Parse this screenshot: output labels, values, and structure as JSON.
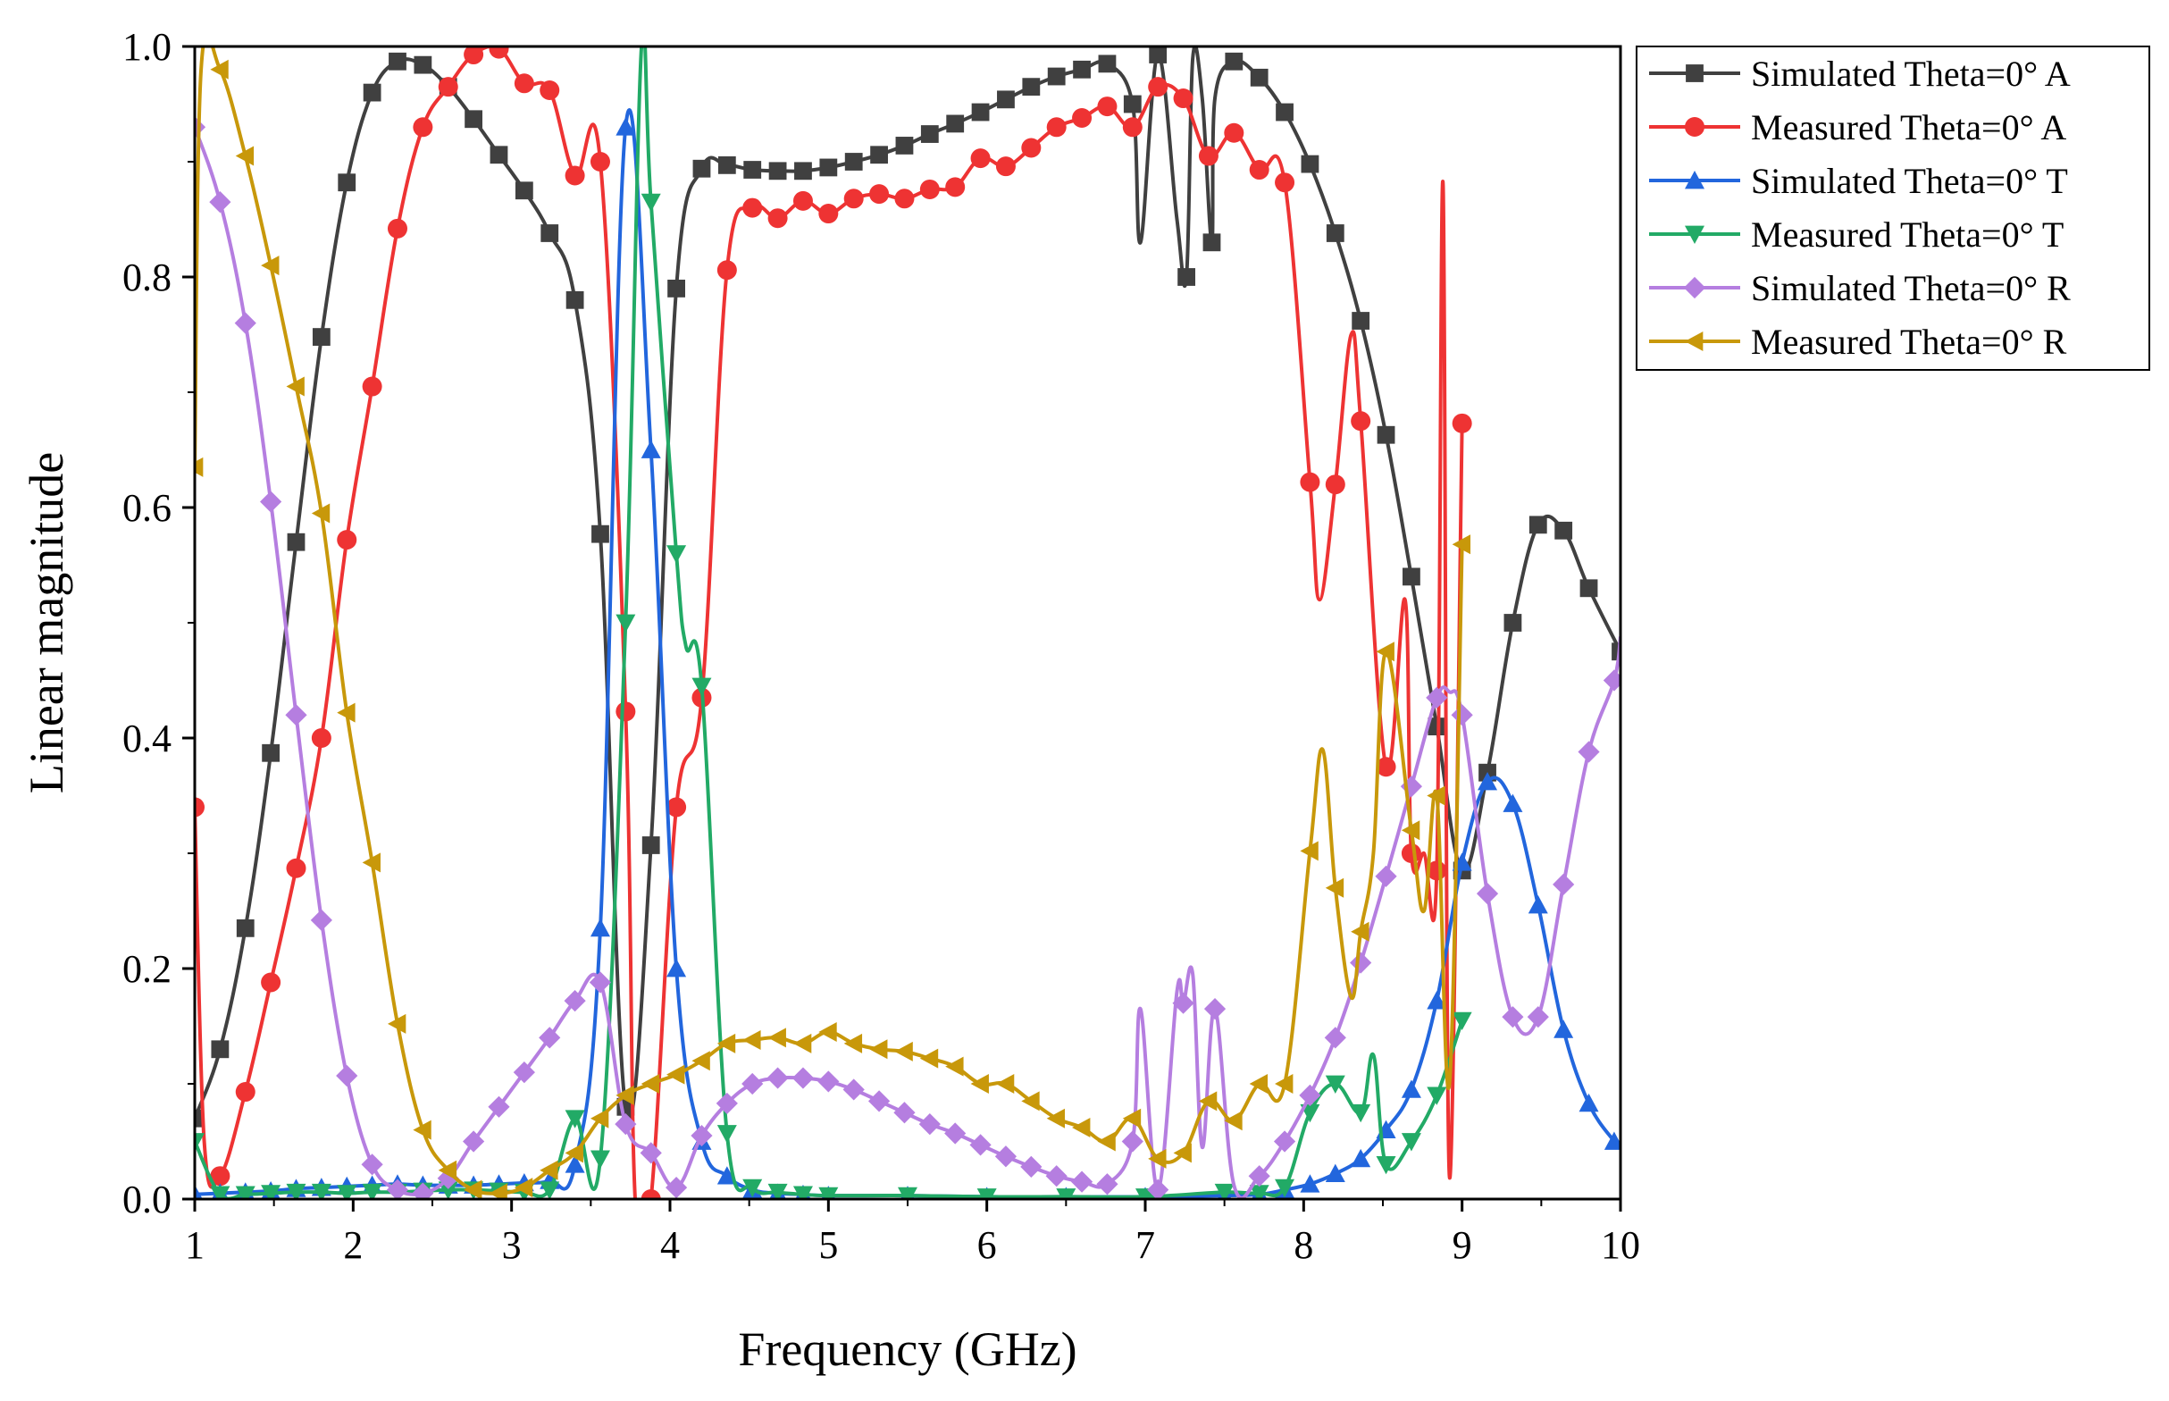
{
  "chart_data": {
    "type": "line",
    "title": "",
    "xlabel": "Frequency (GHz)",
    "ylabel": "Linear magnitude",
    "xlim": [
      1,
      10
    ],
    "ylim": [
      0,
      1.0
    ],
    "xticks": [
      1,
      2,
      3,
      4,
      5,
      6,
      7,
      8,
      9,
      10
    ],
    "xtick_labels": [
      "1",
      "2",
      "3",
      "4",
      "5",
      "6",
      "7",
      "8",
      "9",
      "10"
    ],
    "yticks": [
      0,
      0.2,
      0.4,
      0.6,
      0.8,
      1.0
    ],
    "ytick_labels": [
      "0.0",
      "0.2",
      "0.4",
      "0.6",
      "0.8",
      "1.0"
    ],
    "grid": false,
    "legend_position": "outside-top-right",
    "series": [
      {
        "name": "Simulated Theta=0° A",
        "color": "#404040",
        "marker": "square",
        "x": [
          1.0,
          1.16,
          1.32,
          1.48,
          1.64,
          1.8,
          1.96,
          2.12,
          2.28,
          2.44,
          2.6,
          2.76,
          2.92,
          3.08,
          3.24,
          3.4,
          3.56,
          3.72,
          3.88,
          4.04,
          4.2,
          4.36,
          4.52,
          4.68,
          4.84,
          5.0,
          5.16,
          5.32,
          5.48,
          5.64,
          5.8,
          5.96,
          6.12,
          6.28,
          6.44,
          6.6,
          6.76,
          6.92,
          6.97,
          7.08,
          7.2,
          7.26,
          7.3,
          7.36,
          7.42,
          7.44,
          7.56,
          7.72,
          7.88,
          8.04,
          8.2,
          8.36,
          8.52,
          8.68,
          8.84,
          9.0,
          9.16,
          9.32,
          9.48,
          9.64,
          9.8,
          10.0
        ],
        "y": [
          0.07,
          0.13,
          0.235,
          0.387,
          0.57,
          0.748,
          0.882,
          0.96,
          0.987,
          0.984,
          0.965,
          0.937,
          0.906,
          0.875,
          0.838,
          0.78,
          0.577,
          0.08,
          0.307,
          0.79,
          0.894,
          0.897,
          0.893,
          0.892,
          0.892,
          0.895,
          0.9,
          0.906,
          0.914,
          0.924,
          0.933,
          0.943,
          0.954,
          0.965,
          0.974,
          0.98,
          0.985,
          0.95,
          0.83,
          0.993,
          0.85,
          0.8,
          0.99,
          0.955,
          0.83,
          0.955,
          0.987,
          0.973,
          0.943,
          0.898,
          0.838,
          0.762,
          0.663,
          0.54,
          0.41,
          0.285,
          0.37,
          0.5,
          0.585,
          0.58,
          0.53,
          0.475
        ]
      },
      {
        "name": "Measured Theta=0° A",
        "color": "#EE3333",
        "marker": "circle",
        "x": [
          1.0,
          1.06,
          1.16,
          1.32,
          1.48,
          1.64,
          1.8,
          1.96,
          2.12,
          2.28,
          2.44,
          2.6,
          2.76,
          2.92,
          3.08,
          3.24,
          3.4,
          3.56,
          3.72,
          3.78,
          3.88,
          4.04,
          4.2,
          4.36,
          4.52,
          4.68,
          4.84,
          5.0,
          5.16,
          5.32,
          5.48,
          5.64,
          5.8,
          5.96,
          6.12,
          6.28,
          6.44,
          6.6,
          6.76,
          6.92,
          7.08,
          7.24,
          7.4,
          7.56,
          7.72,
          7.88,
          8.04,
          8.1,
          8.2,
          8.3,
          8.36,
          8.52,
          8.64,
          8.68,
          8.76,
          8.84,
          8.88,
          8.92,
          9.0
        ],
        "y": [
          0.34,
          0.05,
          0.02,
          0.093,
          0.188,
          0.287,
          0.4,
          0.572,
          0.705,
          0.842,
          0.93,
          0.965,
          0.993,
          0.998,
          0.968,
          0.962,
          0.888,
          0.9,
          0.423,
          0.0,
          0.0,
          0.34,
          0.435,
          0.806,
          0.86,
          0.851,
          0.866,
          0.855,
          0.868,
          0.872,
          0.868,
          0.876,
          0.878,
          0.903,
          0.896,
          0.912,
          0.93,
          0.938,
          0.948,
          0.93,
          0.965,
          0.955,
          0.905,
          0.925,
          0.893,
          0.882,
          0.622,
          0.52,
          0.62,
          0.75,
          0.675,
          0.375,
          0.52,
          0.3,
          0.3,
          0.285,
          0.88,
          0.02,
          0.673
        ]
      },
      {
        "name": "Simulated Theta=0° T",
        "color": "#2266DD",
        "marker": "triangle-up",
        "x": [
          1.0,
          1.16,
          1.32,
          1.48,
          1.64,
          1.8,
          1.96,
          2.12,
          2.28,
          2.44,
          2.6,
          2.76,
          2.92,
          3.08,
          3.24,
          3.4,
          3.56,
          3.72,
          3.88,
          4.04,
          4.2,
          4.36,
          4.52,
          4.68,
          4.84,
          5.0,
          5.5,
          6.0,
          6.5,
          7.0,
          7.5,
          7.72,
          7.88,
          8.04,
          8.2,
          8.36,
          8.52,
          8.68,
          8.84,
          9.0,
          9.16,
          9.32,
          9.48,
          9.64,
          9.8,
          9.96
        ],
        "y": [
          0.004,
          0.005,
          0.006,
          0.007,
          0.009,
          0.01,
          0.011,
          0.012,
          0.013,
          0.012,
          0.012,
          0.012,
          0.013,
          0.014,
          0.016,
          0.03,
          0.235,
          0.93,
          0.65,
          0.2,
          0.05,
          0.02,
          0.008,
          0.005,
          0.004,
          0.003,
          0.003,
          0.002,
          0.002,
          0.002,
          0.003,
          0.004,
          0.008,
          0.013,
          0.022,
          0.035,
          0.06,
          0.095,
          0.172,
          0.292,
          0.362,
          0.343,
          0.255,
          0.147,
          0.083,
          0.05
        ]
      },
      {
        "name": "Measured Theta=0° T",
        "color": "#22AA66",
        "marker": "triangle-down",
        "x": [
          1.0,
          1.16,
          1.32,
          1.48,
          1.64,
          1.8,
          1.96,
          2.12,
          2.28,
          2.44,
          2.6,
          2.76,
          2.92,
          3.08,
          3.24,
          3.4,
          3.56,
          3.72,
          3.82,
          3.88,
          4.04,
          4.1,
          4.2,
          4.36,
          4.52,
          4.68,
          4.84,
          5.0,
          5.5,
          6.0,
          6.5,
          7.0,
          7.5,
          7.72,
          7.88,
          8.04,
          8.2,
          8.36,
          8.44,
          8.52,
          8.68,
          8.84,
          9.0
        ],
        "y": [
          0.05,
          0.004,
          0.004,
          0.005,
          0.006,
          0.006,
          0.005,
          0.006,
          0.006,
          0.007,
          0.008,
          0.008,
          0.007,
          0.006,
          0.008,
          0.07,
          0.035,
          0.5,
          1.0,
          0.865,
          0.56,
          0.48,
          0.445,
          0.057,
          0.01,
          0.006,
          0.004,
          0.003,
          0.003,
          0.002,
          0.002,
          0.002,
          0.006,
          0.005,
          0.01,
          0.075,
          0.1,
          0.075,
          0.125,
          0.03,
          0.05,
          0.09,
          0.155
        ]
      },
      {
        "name": "Simulated Theta=0° R",
        "color": "#B57EE0",
        "marker": "diamond",
        "x": [
          1.0,
          1.16,
          1.32,
          1.48,
          1.64,
          1.8,
          1.96,
          2.12,
          2.28,
          2.44,
          2.6,
          2.76,
          2.92,
          3.08,
          3.24,
          3.4,
          3.56,
          3.72,
          3.88,
          4.04,
          4.2,
          4.36,
          4.52,
          4.68,
          4.84,
          5.0,
          5.16,
          5.32,
          5.48,
          5.64,
          5.8,
          5.96,
          6.12,
          6.28,
          6.44,
          6.6,
          6.76,
          6.92,
          6.97,
          7.08,
          7.2,
          7.24,
          7.3,
          7.36,
          7.44,
          7.56,
          7.72,
          7.88,
          8.04,
          8.2,
          8.36,
          8.52,
          8.68,
          8.84,
          8.92,
          9.0,
          9.16,
          9.32,
          9.48,
          9.64,
          9.8,
          9.96,
          10.0
        ],
        "y": [
          0.93,
          0.865,
          0.76,
          0.605,
          0.42,
          0.242,
          0.107,
          0.03,
          0.008,
          0.005,
          0.018,
          0.05,
          0.08,
          0.11,
          0.14,
          0.172,
          0.188,
          0.065,
          0.04,
          0.01,
          0.055,
          0.083,
          0.1,
          0.105,
          0.105,
          0.102,
          0.095,
          0.085,
          0.075,
          0.065,
          0.057,
          0.047,
          0.037,
          0.028,
          0.02,
          0.015,
          0.013,
          0.05,
          0.165,
          0.008,
          0.18,
          0.17,
          0.195,
          0.045,
          0.165,
          0.012,
          0.02,
          0.05,
          0.09,
          0.14,
          0.205,
          0.28,
          0.358,
          0.435,
          0.44,
          0.42,
          0.265,
          0.158,
          0.158,
          0.273,
          0.388,
          0.45,
          0.488
        ]
      },
      {
        "name": "Measured Theta=0° R",
        "color": "#C8980A",
        "marker": "triangle-left",
        "x": [
          1.0,
          1.04,
          1.16,
          1.32,
          1.48,
          1.64,
          1.8,
          1.96,
          2.12,
          2.28,
          2.44,
          2.6,
          2.76,
          2.92,
          3.08,
          3.24,
          3.4,
          3.56,
          3.72,
          3.88,
          4.04,
          4.2,
          4.36,
          4.52,
          4.68,
          4.84,
          5.0,
          5.16,
          5.32,
          5.48,
          5.64,
          5.8,
          5.96,
          6.12,
          6.28,
          6.44,
          6.6,
          6.76,
          6.92,
          7.08,
          7.24,
          7.4,
          7.56,
          7.72,
          7.88,
          8.04,
          8.12,
          8.2,
          8.3,
          8.36,
          8.44,
          8.52,
          8.68,
          8.76,
          8.84,
          8.92,
          9.0
        ],
        "y": [
          0.635,
          0.98,
          0.98,
          0.905,
          0.81,
          0.705,
          0.595,
          0.422,
          0.292,
          0.152,
          0.06,
          0.025,
          0.008,
          0.005,
          0.01,
          0.025,
          0.04,
          0.07,
          0.09,
          0.1,
          0.108,
          0.12,
          0.135,
          0.138,
          0.14,
          0.135,
          0.145,
          0.135,
          0.13,
          0.128,
          0.122,
          0.115,
          0.1,
          0.1,
          0.085,
          0.07,
          0.062,
          0.05,
          0.07,
          0.035,
          0.04,
          0.085,
          0.068,
          0.1,
          0.1,
          0.302,
          0.39,
          0.27,
          0.175,
          0.232,
          0.3,
          0.475,
          0.32,
          0.25,
          0.35,
          0.1,
          0.568
        ]
      }
    ]
  }
}
